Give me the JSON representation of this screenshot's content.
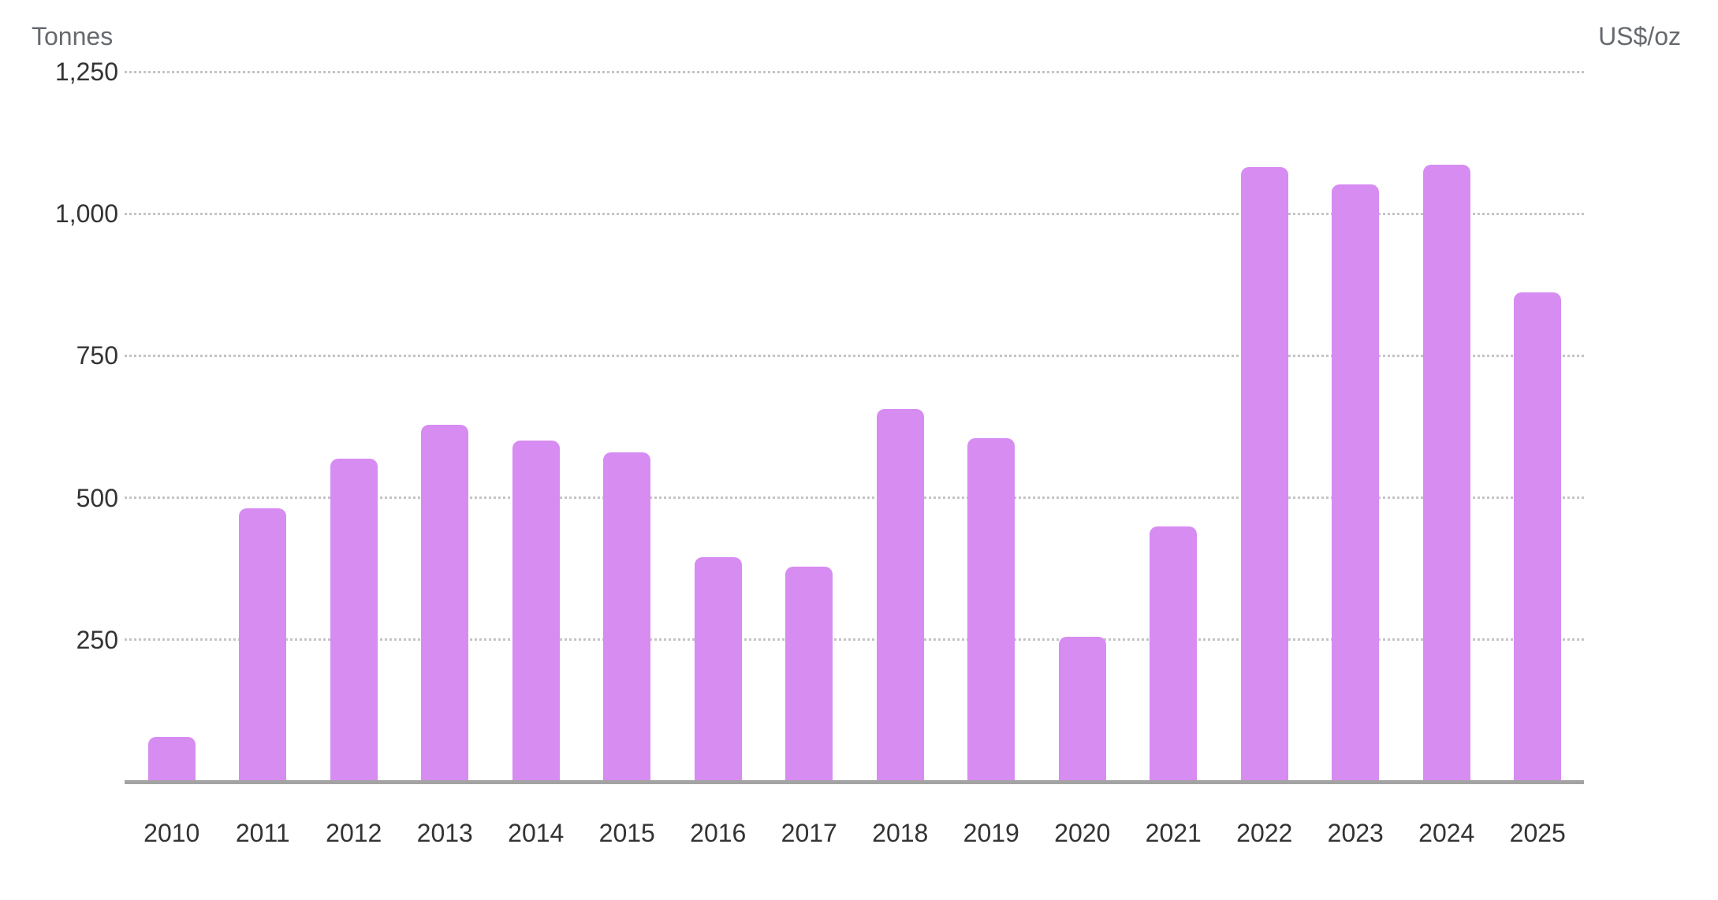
{
  "chart": {
    "left_axis_title": "Tonnes",
    "right_axis_title": "US$/oz",
    "colors": {
      "bar": "#d78cf2",
      "gridline": "#c4c4c4",
      "axis_line": "#a3a3a3",
      "tick_label": "#333333",
      "axis_title": "#66696e"
    }
  },
  "chart_data": {
    "type": "bar",
    "title": "",
    "subtitle": "",
    "categories": [
      "2010",
      "2011",
      "2012",
      "2013",
      "2014",
      "2015",
      "2016",
      "2017",
      "2018",
      "2019",
      "2020",
      "2021",
      "2022",
      "2023",
      "2024",
      "2025"
    ],
    "values": [
      79,
      481,
      569,
      629,
      601,
      580,
      395,
      379,
      656,
      605,
      255,
      450,
      1082,
      1051,
      1086,
      862
    ],
    "series": [
      {
        "name": "Tonnes",
        "type": "bar",
        "axis": "left",
        "visible": true,
        "color": "#d78cf2"
      },
      {
        "name": "US$/oz",
        "type": "line",
        "axis": "right",
        "visible": false
      }
    ],
    "xlabel": "",
    "ylabel_left": "Tonnes",
    "ylabel_right": "US$/oz",
    "ylim_left": [
      0,
      1250
    ],
    "y_ticks_left": [
      {
        "label": "1,250",
        "value": 1250
      },
      {
        "label": "1,000",
        "value": 1000
      },
      {
        "label": "750",
        "value": 750
      },
      {
        "label": "500",
        "value": 500
      },
      {
        "label": "250",
        "value": 250
      }
    ],
    "y_ticks_right": [],
    "grid": "horizontal-dotted",
    "legend_position": "none"
  }
}
